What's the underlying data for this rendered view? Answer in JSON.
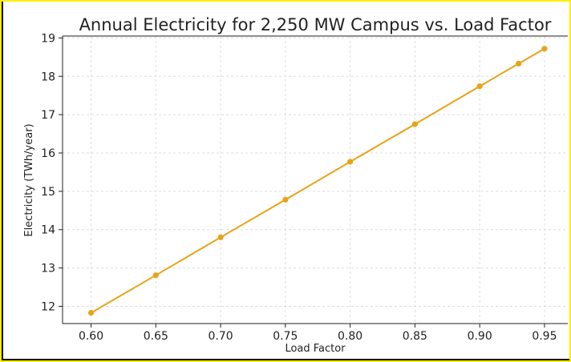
{
  "chart_data": {
    "type": "line",
    "title": "Annual Electricity for 2,250 MW Campus vs. Load Factor",
    "xlabel": "Load Factor",
    "ylabel": "Electricity (TWh/year)",
    "x_ticks": [
      "0.60",
      "0.65",
      "0.70",
      "0.75",
      "0.80",
      "0.85",
      "0.90",
      "0.95"
    ],
    "y_ticks": [
      "12",
      "13",
      "14",
      "15",
      "16",
      "17",
      "18",
      "19"
    ],
    "xlim": [
      0.578,
      0.968
    ],
    "ylim": [
      11.55,
      19.05
    ],
    "grid": true,
    "series": [
      {
        "x": [
          0.6,
          0.65,
          0.7,
          0.75,
          0.8,
          0.85,
          0.9,
          0.93,
          0.95
        ],
        "y": [
          11.83,
          12.81,
          13.8,
          14.78,
          15.77,
          16.75,
          17.74,
          18.33,
          18.72
        ],
        "color": "#e8a317"
      }
    ]
  },
  "colors": {
    "frame_border": "#ffee00",
    "grid": "#dddddd",
    "line": "#e8a317"
  }
}
